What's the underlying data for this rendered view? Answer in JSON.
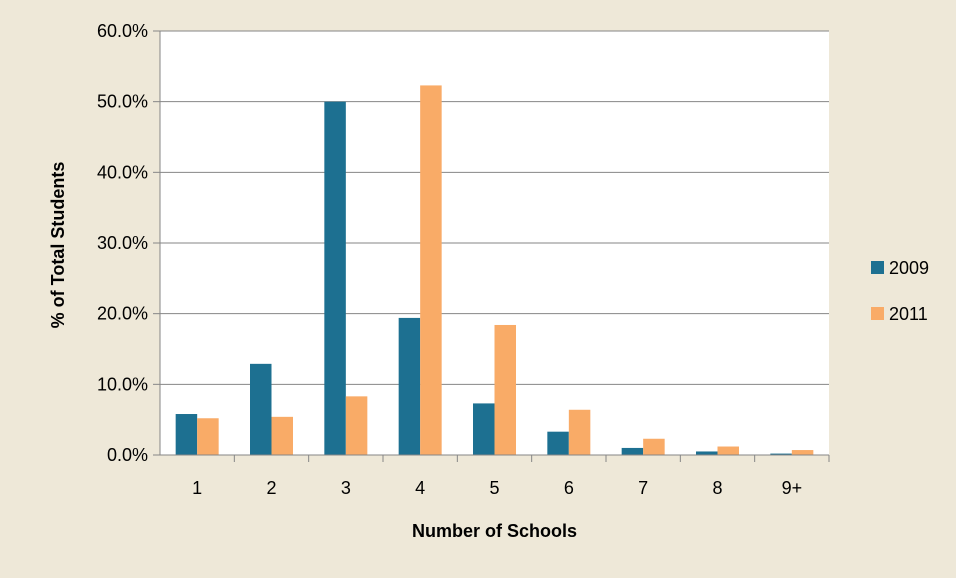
{
  "chart_data": {
    "type": "bar",
    "title": "",
    "xlabel": "Number of Schools",
    "ylabel": "% of Total Students",
    "categories": [
      "1",
      "2",
      "3",
      "4",
      "5",
      "6",
      "7",
      "8",
      "9+"
    ],
    "series": [
      {
        "name": "2009",
        "color": "#1d7091",
        "values": [
          5.8,
          12.9,
          50.0,
          19.4,
          7.3,
          3.3,
          1.0,
          0.5,
          0.2
        ]
      },
      {
        "name": "2011",
        "color": "#f9ab67",
        "values": [
          5.2,
          5.4,
          8.3,
          52.3,
          18.4,
          6.4,
          2.3,
          1.2,
          0.7
        ]
      }
    ],
    "ylim": [
      0,
      60
    ],
    "yticks": [
      "0.0%",
      "10.0%",
      "20.0%",
      "30.0%",
      "40.0%",
      "50.0%",
      "60.0%"
    ],
    "grid": true,
    "legend_position": "right"
  },
  "colors": {
    "background": "#eee8d8",
    "plot_background": "#ffffff",
    "gridline": "#868686"
  }
}
